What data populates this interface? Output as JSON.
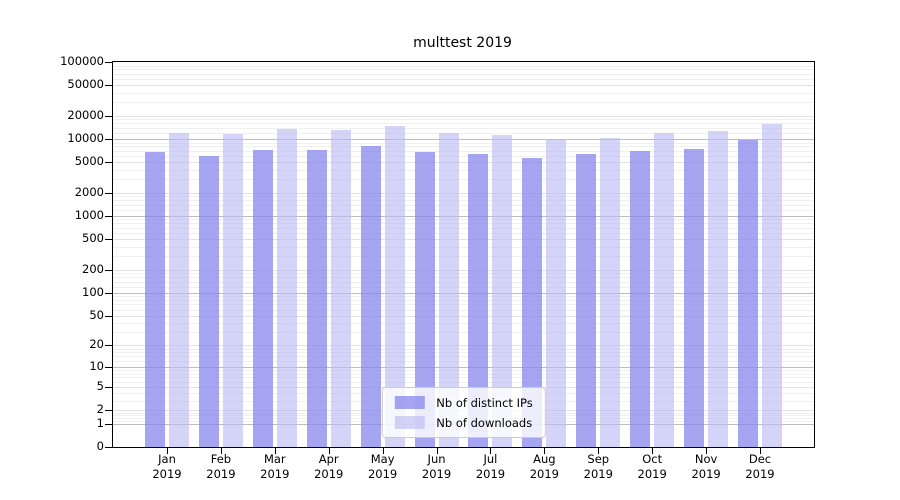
{
  "chart_data": {
    "type": "bar",
    "title": "multtest 2019",
    "categories": [
      "Jan",
      "Feb",
      "Mar",
      "Apr",
      "May",
      "Jun",
      "Jul",
      "Aug",
      "Sep",
      "Oct",
      "Nov",
      "Dec"
    ],
    "category_year": "2019",
    "series": [
      {
        "name": "Nb of distinct IPs",
        "color": "rgba(130,130,235,0.72)",
        "values": [
          6700,
          6100,
          7100,
          7300,
          8000,
          6700,
          6400,
          5600,
          6300,
          6900,
          7500,
          9700
        ]
      },
      {
        "name": "Nb of downloads",
        "color": "rgba(185,185,243,0.62)",
        "values": [
          11900,
          11700,
          13400,
          13000,
          14700,
          11900,
          11200,
          9700,
          10200,
          11900,
          12600,
          15700
        ]
      }
    ],
    "yticks": [
      0,
      1,
      2,
      5,
      10,
      20,
      50,
      100,
      200,
      500,
      1000,
      2000,
      5000,
      10000,
      20000,
      50000,
      100000
    ],
    "scale": "log1p",
    "ylim": [
      0,
      100000
    ],
    "grid": true,
    "legend_position": "lower center"
  }
}
